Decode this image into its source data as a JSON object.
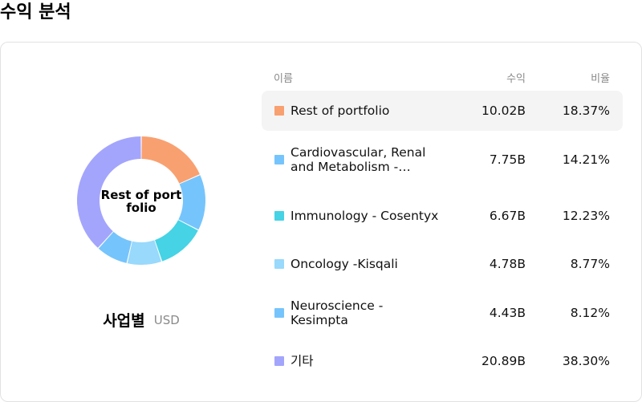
{
  "page": {
    "title": "수익 분석"
  },
  "donut": {
    "center_label": "Rest of portfolio"
  },
  "caption": {
    "title": "사업별",
    "unit": "USD"
  },
  "table": {
    "headers": {
      "name": "이름",
      "revenue": "수익",
      "share": "비율"
    }
  },
  "chart_data": {
    "type": "pie",
    "title": "",
    "unit": "USD",
    "categories": [
      "Rest of portfolio",
      "Cardiovascular, Renal and Metabolism -…",
      "Immunology - Cosentyx",
      "Oncology -Kisqali",
      "Neuroscience - Kesimpta",
      "기타"
    ],
    "values": [
      10.02,
      7.75,
      6.67,
      4.78,
      4.43,
      20.89
    ],
    "revenue_labels": [
      "10.02B",
      "7.75B",
      "6.67B",
      "4.78B",
      "4.43B",
      "20.89B"
    ],
    "shares": [
      18.37,
      14.21,
      12.23,
      8.77,
      8.12,
      38.3
    ],
    "share_labels": [
      "18.37%",
      "14.21%",
      "12.23%",
      "8.77%",
      "8.12%",
      "38.30%"
    ],
    "colors": [
      "#f9a070",
      "#76c4fc",
      "#45d3e5",
      "#98d9fc",
      "#76c4fc",
      "#a3a5fc"
    ],
    "highlighted": "Rest of portfolio"
  }
}
